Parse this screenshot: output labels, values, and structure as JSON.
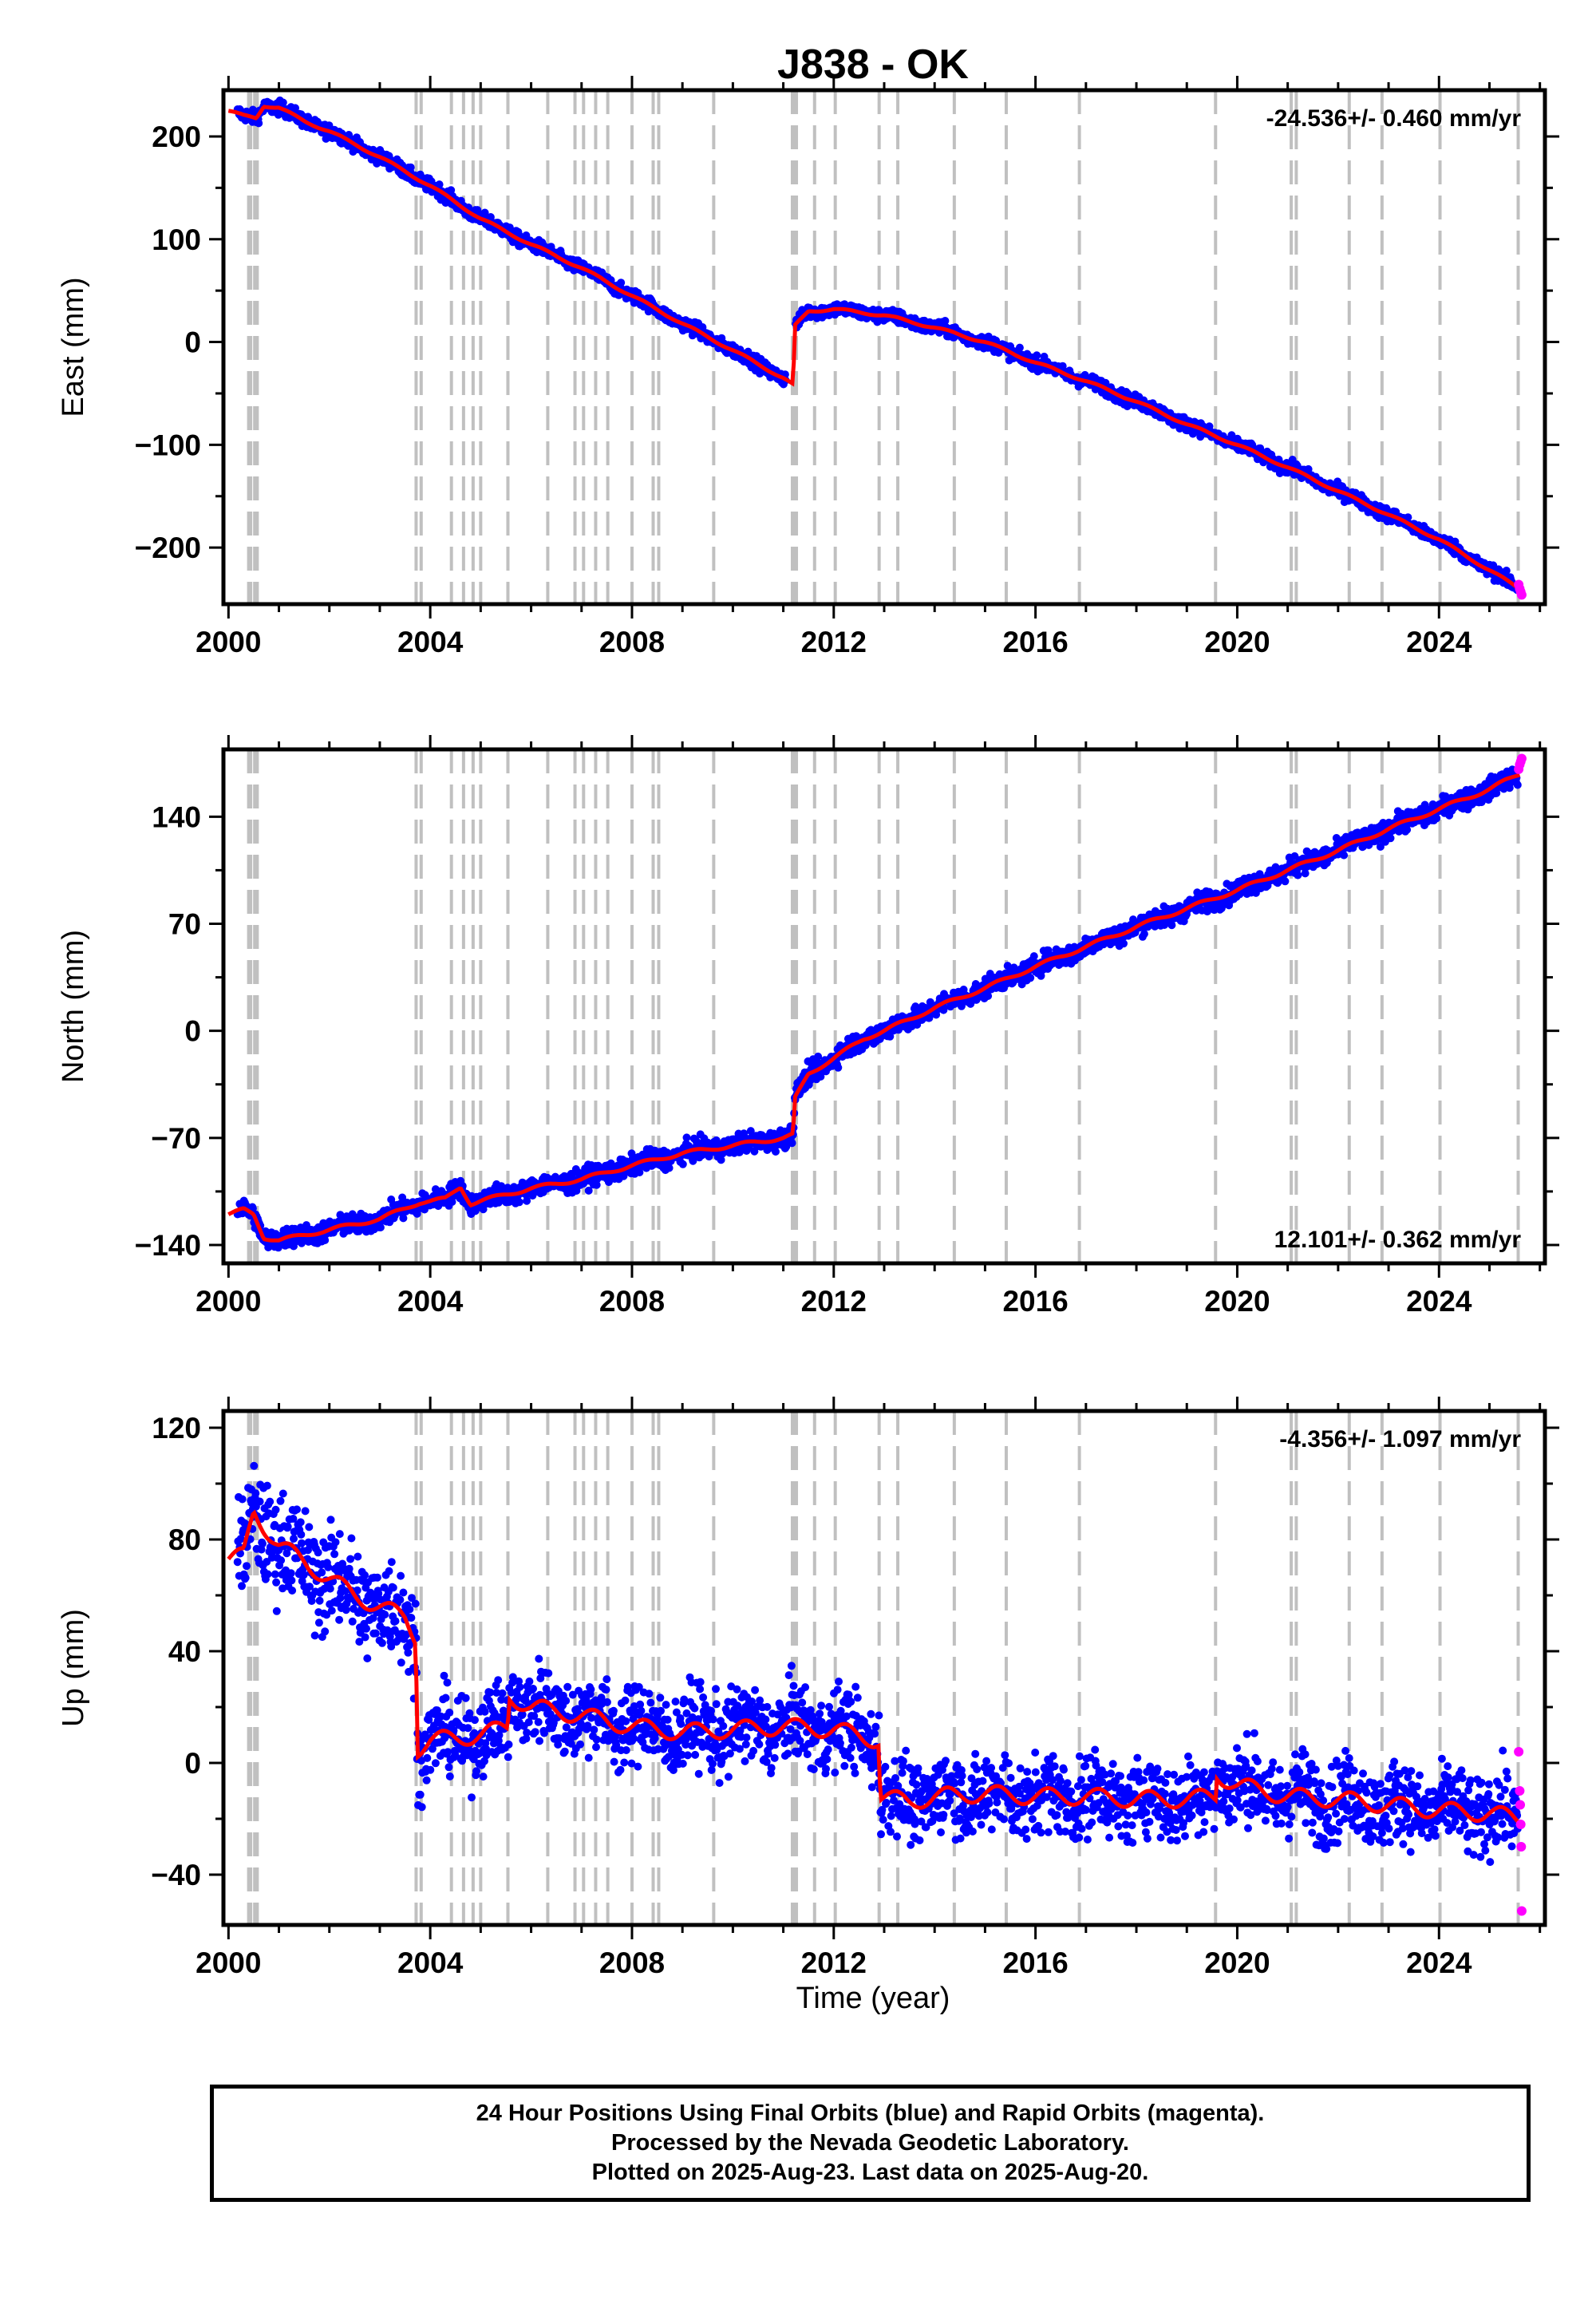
{
  "title": "J838 - OK",
  "colors": {
    "final_orbits": "#0000ff",
    "rapid_orbits": "#ff00ff",
    "model": "#ff0000",
    "event_lines": "#c0c0c0"
  },
  "x_axis": {
    "label": "Time (year)",
    "range": [
      1999.9,
      2026.1
    ],
    "ticks": [
      2000,
      2004,
      2008,
      2012,
      2016,
      2020,
      2024
    ]
  },
  "event_lines": [
    2000.4,
    2000.44,
    2000.52,
    2000.57,
    2003.72,
    2003.82,
    2004.42,
    2004.66,
    2004.85,
    2005.0,
    2005.54,
    2006.33,
    2006.87,
    2007.04,
    2007.28,
    2007.52,
    2008.0,
    2008.42,
    2008.53,
    2009.62,
    2011.18,
    2011.21,
    2011.26,
    2011.62,
    2012.03,
    2012.9,
    2013.27,
    2014.39,
    2015.42,
    2016.87,
    2019.57,
    2021.07,
    2021.17,
    2022.22,
    2022.87,
    2024.02,
    2025.57
  ],
  "chart_data": [
    {
      "type": "scatter",
      "ylabel": "East (mm)",
      "ylim": [
        -255,
        245
      ],
      "yticks": [
        -200,
        -100,
        0,
        100,
        200
      ],
      "rate_label": "-24.536+/- 0.460 mm/yr",
      "rate_position": "top-right",
      "model_series": {
        "x": [
          2000.0,
          2000.3,
          2000.55,
          2000.7,
          2001.0,
          2001.5,
          2002.0,
          2003.0,
          2004.0,
          2005.0,
          2006.0,
          2007.0,
          2008.0,
          2009.0,
          2010.0,
          2011.0,
          2011.2,
          2011.22,
          2011.5,
          2012.0,
          2013.0,
          2014.0,
          2015.0,
          2016.0,
          2017.0,
          2018.0,
          2019.0,
          2020.0,
          2021.0,
          2022.0,
          2023.0,
          2024.0,
          2025.0,
          2025.6
        ],
        "y": [
          225,
          220,
          218,
          230,
          228,
          215,
          205,
          180,
          152,
          120,
          95,
          72,
          45,
          18,
          -8,
          -35,
          -42,
          15,
          30,
          32,
          26,
          14,
          0,
          -20,
          -38,
          -58,
          -80,
          -100,
          -122,
          -145,
          -168,
          -192,
          -222,
          -240
        ]
      },
      "rapid_points": {
        "x": [
          2025.58,
          2025.6,
          2025.62,
          2025.64
        ],
        "y": [
          -236,
          -240,
          -243,
          -246
        ]
      }
    },
    {
      "type": "scatter",
      "ylabel": "North (mm)",
      "ylim": [
        -152,
        184
      ],
      "yticks": [
        -140,
        -70,
        0,
        70,
        140
      ],
      "rate_label": "12.101+/- 0.362 mm/yr",
      "rate_position": "bottom-right",
      "model_series": {
        "x": [
          2000.0,
          2000.3,
          2000.5,
          2000.7,
          2001.0,
          2002.0,
          2003.0,
          2003.8,
          2004.3,
          2004.6,
          2004.8,
          2005.5,
          2006.0,
          2007.0,
          2008.0,
          2009.0,
          2010.0,
          2011.0,
          2011.2,
          2011.22,
          2011.5,
          2012.0,
          2012.6,
          2013.0,
          2014.0,
          2015.0,
          2016.0,
          2017.0,
          2018.0,
          2019.0,
          2020.0,
          2021.0,
          2022.0,
          2023.0,
          2024.0,
          2025.0,
          2025.6
        ],
        "y": [
          -120,
          -117,
          -120,
          -135,
          -137,
          -130,
          -123,
          -112,
          -110,
          -102,
          -113,
          -107,
          -103,
          -97,
          -88,
          -80,
          -75,
          -70,
          -68,
          -45,
          -28,
          -18,
          -5,
          0,
          15,
          28,
          42,
          55,
          68,
          80,
          92,
          105,
          118,
          132,
          145,
          158,
          168
        ]
      },
      "rapid_points": {
        "x": [
          2025.58,
          2025.6,
          2025.62,
          2025.64
        ],
        "y": [
          171,
          174,
          176,
          178
        ]
      }
    },
    {
      "type": "scatter",
      "ylabel": "Up (mm)",
      "ylim": [
        -58,
        126
      ],
      "yticks": [
        -40,
        0,
        40,
        80,
        120
      ],
      "rate_label": "-4.356+/- 1.097 mm/yr",
      "rate_position": "top-right",
      "model_series": {
        "x": [
          2000.0,
          2000.3,
          2000.5,
          2000.7,
          2001.0,
          2001.5,
          2002.0,
          2002.5,
          2003.0,
          2003.5,
          2003.72,
          2003.74,
          2004.0,
          2005.0,
          2005.54,
          2005.56,
          2006.0,
          2007.0,
          2008.0,
          2009.0,
          2010.0,
          2011.0,
          2012.0,
          2012.9,
          2012.92,
          2013.5,
          2014.0,
          2015.0,
          2016.0,
          2017.0,
          2018.0,
          2019.0,
          2019.57,
          2019.59,
          2020.0,
          2021.0,
          2022.0,
          2023.0,
          2024.0,
          2025.0,
          2025.6
        ],
        "y": [
          73,
          74,
          90,
          85,
          78,
          72,
          66,
          60,
          56,
          52,
          45,
          5,
          8,
          10,
          13,
          24,
          20,
          17,
          13,
          11,
          12,
          13,
          12,
          8,
          -12,
          -14,
          -12,
          -11,
          -12,
          -12,
          -13,
          -13,
          -12,
          -4,
          -8,
          -12,
          -13,
          -15,
          -17,
          -18,
          -20
        ]
      },
      "rapid_points": {
        "x": [
          2025.58,
          2025.6,
          2025.61,
          2025.62,
          2025.63,
          2025.64
        ],
        "y": [
          4,
          -10,
          -15,
          -22,
          -30,
          -53
        ]
      }
    }
  ],
  "footer": {
    "line1": "24 Hour Positions Using Final Orbits (blue) and Rapid Orbits (magenta).",
    "line2": "Processed by the Nevada Geodetic Laboratory.",
    "line3": "Plotted on 2025-Aug-23. Last data on 2025-Aug-20."
  }
}
